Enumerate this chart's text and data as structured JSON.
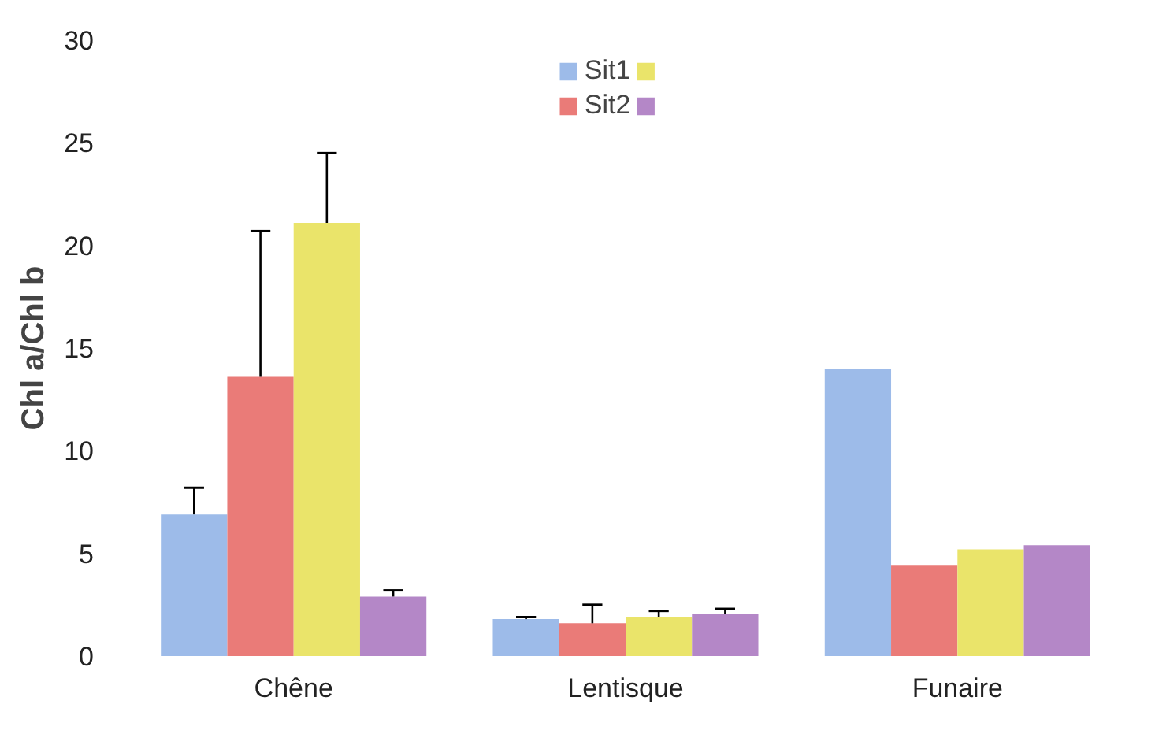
{
  "chart_data": {
    "type": "bar",
    "ylabel": "Chl a/Chl b",
    "categories": [
      "Chêne",
      "Lentisque",
      "Funaire"
    ],
    "series": [
      {
        "name": "Sit1",
        "color": "#9dbbe9",
        "values": [
          6.9,
          1.8,
          14.0
        ],
        "errors": [
          [
            6.9,
            8.2
          ],
          [
            1.8,
            1.9
          ],
          null
        ]
      },
      {
        "name": "Sit2",
        "color": "#ea7b78",
        "values": [
          13.6,
          1.6,
          4.4
        ],
        "errors": [
          [
            13.6,
            20.7
          ],
          [
            1.6,
            2.5
          ],
          null
        ]
      },
      {
        "color": "#eae46a",
        "values": [
          21.1,
          1.9,
          5.2
        ],
        "errors": [
          [
            21.1,
            24.5
          ],
          [
            1.9,
            2.2
          ],
          null
        ]
      },
      {
        "color": "#b487c7",
        "values": [
          2.9,
          2.05,
          5.4
        ],
        "errors": [
          [
            2.9,
            3.2
          ],
          [
            2.05,
            2.3
          ],
          null
        ]
      }
    ],
    "ylim": [
      0,
      30
    ],
    "yticks": [
      0,
      5,
      10,
      15,
      20,
      25,
      30
    ],
    "grid": false,
    "legend": "top"
  }
}
